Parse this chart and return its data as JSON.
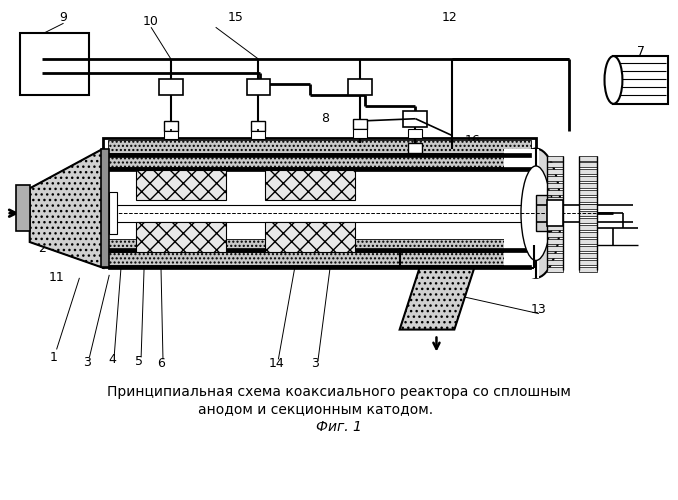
{
  "caption_line1": "Принципиальная схема коаксиального реактора со сплошным",
  "caption_line2": "анодом и секционным катодом.",
  "caption_line3": "Фиг. 1",
  "bg_color": "#ffffff",
  "figsize": [
    6.78,
    5.0
  ],
  "dpi": 100
}
